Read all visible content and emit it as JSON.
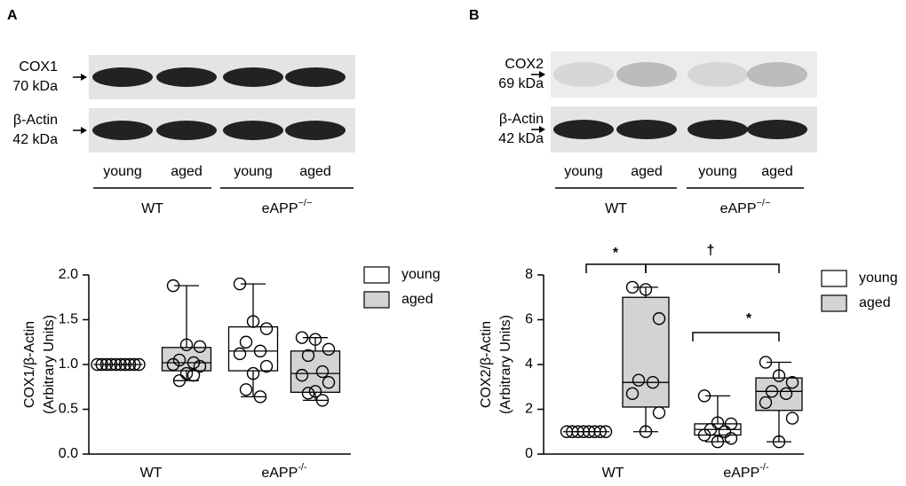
{
  "chart_data": [
    {
      "type": "box",
      "panel": "A",
      "blot": {
        "rows": [
          {
            "name": "COX1",
            "size": "70 kDa"
          },
          {
            "name": "β-Actin",
            "size": "42 kDa"
          }
        ],
        "lanes": [
          "young",
          "aged",
          "young",
          "aged"
        ],
        "groups": [
          {
            "text": "WT"
          },
          {
            "text": "eAPP",
            "sup": "−/−"
          }
        ]
      },
      "ylabel": [
        "COX1/β-Actin",
        "(Arbitrary Units)"
      ],
      "categories": [
        {
          "text": "WT"
        },
        {
          "text": "eAPP",
          "sup": "-/-"
        }
      ],
      "ylim": [
        0,
        2
      ],
      "yticks": [
        {
          "value": 0,
          "label": "0.0"
        },
        0.5,
        {
          "value": 1,
          "label": "1.0"
        },
        1.5,
        {
          "value": 2,
          "label": "2.0"
        }
      ],
      "series": [
        {
          "name": "young",
          "color": "#ffffff",
          "boxes": [
            {
              "min": 1,
              "q1": 1,
              "median": 1,
              "q3": 1,
              "max": 1,
              "points": [
                1,
                1,
                1,
                1,
                1,
                1,
                1,
                1,
                1,
                1
              ]
            },
            {
              "min": 0.64,
              "q1": 0.93,
              "median": 1.15,
              "q3": 1.42,
              "max": 1.9,
              "points": [
                1.9,
                1.48,
                1.4,
                1.25,
                1.15,
                1.12,
                0.98,
                0.9,
                0.72,
                0.64
              ]
            }
          ]
        },
        {
          "name": "aged",
          "color": "#d3d3d3",
          "boxes": [
            {
              "min": 0.82,
              "q1": 0.93,
              "median": 1.02,
              "q3": 1.19,
              "max": 1.88,
              "points": [
                1.88,
                1.22,
                1.2,
                1.05,
                1.02,
                1,
                0.98,
                0.9,
                0.82,
                0.88
              ]
            },
            {
              "min": 0.6,
              "q1": 0.69,
              "median": 0.9,
              "q3": 1.15,
              "max": 1.3,
              "points": [
                1.3,
                1.28,
                1.17,
                1.1,
                0.92,
                0.88,
                0.8,
                0.7,
                0.68,
                0.6
              ]
            }
          ]
        }
      ],
      "annotations": []
    },
    {
      "type": "box",
      "panel": "B",
      "blot": {
        "rows": [
          {
            "name": "COX2",
            "size": "69 kDa"
          },
          {
            "name": "β-Actin",
            "size": "42 kDa"
          }
        ],
        "lanes": [
          "young",
          "aged",
          "young",
          "aged"
        ],
        "groups": [
          {
            "text": "WT"
          },
          {
            "text": "eAPP",
            "sup": "−/−"
          }
        ]
      },
      "ylabel": [
        "COX2/β-Actin",
        "(Arbitrary Units)"
      ],
      "categories": [
        {
          "text": "WT"
        },
        {
          "text": "eAPP",
          "sup": "-/-"
        }
      ],
      "ylim": [
        0,
        8
      ],
      "yticks": [
        0,
        2,
        4,
        6,
        8
      ],
      "series": [
        {
          "name": "young",
          "color": "#ffffff",
          "boxes": [
            {
              "min": 1,
              "q1": 1,
              "median": 1,
              "q3": 1,
              "max": 1,
              "points": [
                1,
                1,
                1,
                1,
                1,
                1,
                1,
                1
              ]
            },
            {
              "min": 0.55,
              "q1": 0.85,
              "median": 1.1,
              "q3": 1.35,
              "max": 2.6,
              "points": [
                2.6,
                1.4,
                1.35,
                1.1,
                1,
                0.85,
                0.7,
                0.55
              ]
            }
          ]
        },
        {
          "name": "aged",
          "color": "#d3d3d3",
          "boxes": [
            {
              "min": 1,
              "q1": 2.1,
              "median": 3.2,
              "q3": 7,
              "max": 7.45,
              "points": [
                7.45,
                7.35,
                6.05,
                3.3,
                3.2,
                2.7,
                1.85,
                1
              ]
            },
            {
              "min": 0.55,
              "q1": 1.95,
              "median": 2.8,
              "q3": 3.4,
              "max": 4.1,
              "points": [
                4.1,
                3.5,
                3.2,
                2.8,
                2.7,
                2.3,
                1.6,
                0.55
              ]
            }
          ]
        }
      ],
      "annotations": [
        "*",
        "†",
        "*"
      ]
    }
  ]
}
